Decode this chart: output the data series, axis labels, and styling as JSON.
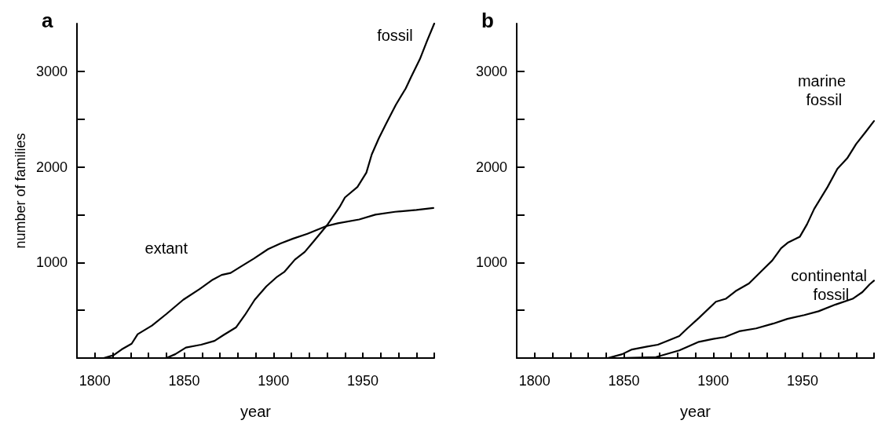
{
  "chart_data": [
    {
      "type": "line",
      "title": "a",
      "xlabel": "year",
      "ylabel": "number of families",
      "xlim": [
        1790,
        1990
      ],
      "ylim": [
        0,
        3500
      ],
      "xticks": [
        {
          "value": 1800,
          "label": "1800"
        },
        {
          "value": 1810,
          "label": null
        },
        {
          "value": 1820,
          "label": null
        },
        {
          "value": 1830,
          "label": null
        },
        {
          "value": 1840,
          "label": null
        },
        {
          "value": 1850,
          "label": "1850"
        },
        {
          "value": 1860,
          "label": null
        },
        {
          "value": 1870,
          "label": null
        },
        {
          "value": 1880,
          "label": null
        },
        {
          "value": 1890,
          "label": null
        },
        {
          "value": 1900,
          "label": "1900"
        },
        {
          "value": 1910,
          "label": null
        },
        {
          "value": 1920,
          "label": null
        },
        {
          "value": 1930,
          "label": null
        },
        {
          "value": 1940,
          "label": null
        },
        {
          "value": 1950,
          "label": "1950"
        },
        {
          "value": 1960,
          "label": null
        },
        {
          "value": 1970,
          "label": null
        },
        {
          "value": 1980,
          "label": null
        },
        {
          "value": 1990,
          "label": null
        }
      ],
      "yticks": [
        {
          "value": 0,
          "label": null
        },
        {
          "value": 500,
          "label": null
        },
        {
          "value": 1000,
          "label": "1000"
        },
        {
          "value": 1500,
          "label": null
        },
        {
          "value": 2000,
          "label": "2000"
        },
        {
          "value": 2500,
          "label": null
        },
        {
          "value": 3000,
          "label": "3000"
        }
      ],
      "grid": false,
      "legend": false,
      "marker": "none",
      "line_style": "solid",
      "series": [
        {
          "name": "extant",
          "color": "#000000",
          "x": [
            1805,
            1810.5,
            1815,
            1820.6,
            1824,
            1832,
            1840,
            1849.5,
            1858.5,
            1866,
            1871,
            1876,
            1882,
            1889,
            1897,
            1904,
            1911,
            1919,
            1929.5,
            1936,
            1948,
            1957,
            1968,
            1980,
            1989.5
          ],
          "values": [
            0,
            30,
            90,
            150,
            250,
            340,
            460,
            610,
            720,
            820,
            870,
            890,
            960,
            1040,
            1140,
            1200,
            1250,
            1300,
            1380,
            1410,
            1450,
            1500,
            1530,
            1550,
            1570
          ]
        },
        {
          "name": "fossil",
          "color": "#000000",
          "x": [
            1840,
            1845,
            1851,
            1859.5,
            1867,
            1872,
            1879,
            1884,
            1889.5,
            1896,
            1902,
            1906,
            1912,
            1917.5,
            1922,
            1930,
            1937,
            1940,
            1947,
            1952,
            1955,
            1959,
            1963,
            1968.5,
            1974,
            1977,
            1982,
            1986,
            1990
          ],
          "values": [
            0,
            40,
            110,
            140,
            180,
            240,
            320,
            450,
            610,
            750,
            850,
            900,
            1030,
            1110,
            1210,
            1390,
            1580,
            1680,
            1790,
            1940,
            2130,
            2300,
            2450,
            2650,
            2820,
            2940,
            3130,
            3320,
            3500
          ]
        }
      ]
    },
    {
      "type": "line",
      "title": "b",
      "xlabel": "year",
      "xlim": [
        1790,
        1990
      ],
      "ylim": [
        0,
        3500
      ],
      "xticks": [
        {
          "value": 1800,
          "label": "1800"
        },
        {
          "value": 1810,
          "label": null
        },
        {
          "value": 1820,
          "label": null
        },
        {
          "value": 1830,
          "label": null
        },
        {
          "value": 1840,
          "label": null
        },
        {
          "value": 1850,
          "label": "1850"
        },
        {
          "value": 1860,
          "label": null
        },
        {
          "value": 1870,
          "label": null
        },
        {
          "value": 1880,
          "label": null
        },
        {
          "value": 1890,
          "label": null
        },
        {
          "value": 1900,
          "label": "1900"
        },
        {
          "value": 1910,
          "label": null
        },
        {
          "value": 1920,
          "label": null
        },
        {
          "value": 1930,
          "label": null
        },
        {
          "value": 1940,
          "label": null
        },
        {
          "value": 1950,
          "label": "1950"
        },
        {
          "value": 1960,
          "label": null
        },
        {
          "value": 1970,
          "label": null
        },
        {
          "value": 1980,
          "label": null
        },
        {
          "value": 1990,
          "label": null
        }
      ],
      "yticks": [
        {
          "value": 0,
          "label": null
        },
        {
          "value": 500,
          "label": null
        },
        {
          "value": 1000,
          "label": "1000"
        },
        {
          "value": 1500,
          "label": null
        },
        {
          "value": 2000,
          "label": "2000"
        },
        {
          "value": 2500,
          "label": null
        },
        {
          "value": 3000,
          "label": "3000"
        }
      ],
      "grid": false,
      "legend": false,
      "marker": "none",
      "line_style": "solid",
      "series": [
        {
          "name": "marine fossil",
          "color": "#000000",
          "x": [
            1841,
            1849,
            1854.5,
            1863,
            1869,
            1874.5,
            1881,
            1885.5,
            1892,
            1901.5,
            1907,
            1912.5,
            1920,
            1927,
            1933,
            1938,
            1942,
            1948.5,
            1952.5,
            1956.5,
            1964,
            1969.5,
            1975,
            1980,
            1985.5,
            1990
          ],
          "values": [
            0,
            40,
            90,
            120,
            140,
            180,
            230,
            310,
            420,
            590,
            620,
            700,
            780,
            910,
            1020,
            1150,
            1210,
            1270,
            1400,
            1560,
            1790,
            1980,
            2090,
            2240,
            2370,
            2480
          ]
        },
        {
          "name": "continental fossil",
          "color": "#000000",
          "x": [
            1847,
            1868,
            1881,
            1892,
            1900,
            1906.5,
            1914.5,
            1924,
            1933.5,
            1941.5,
            1951,
            1959,
            1968.5,
            1978,
            1983.5,
            1987.5,
            1990
          ],
          "values": [
            0,
            10,
            80,
            170,
            200,
            220,
            280,
            310,
            360,
            410,
            450,
            490,
            560,
            620,
            690,
            770,
            810
          ]
        }
      ]
    }
  ]
}
